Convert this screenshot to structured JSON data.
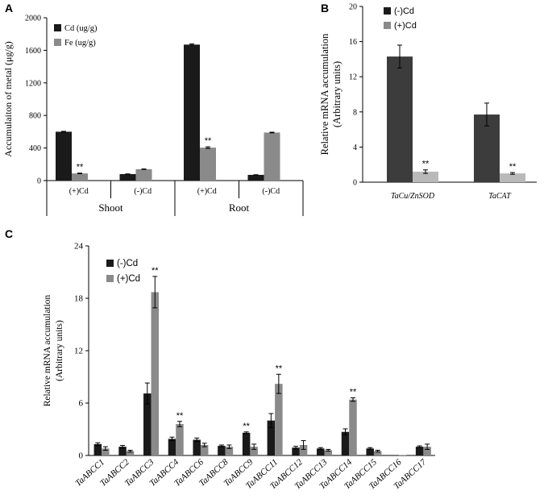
{
  "colors": {
    "black": "#1a1a1a",
    "dark": "#3c3c3c",
    "gray": "#8a8a8a",
    "light": "#b9b9b9",
    "axis": "#000000"
  },
  "chart_data": [
    {
      "panel": "A",
      "type": "bar",
      "ylabel": "Accumulaiton of metal (μg/g)",
      "ylim": [
        0,
        2000
      ],
      "yticks": [
        0,
        400,
        800,
        1200,
        1600,
        2000
      ],
      "categories": [
        "(+)Cd",
        "(-)Cd",
        "(+)Cd",
        "(-)Cd"
      ],
      "groups": [
        "Shoot",
        "Root"
      ],
      "series": [
        {
          "name": "Cd (ug/g)",
          "values": [
            600,
            80,
            1670,
            70
          ],
          "errors": [
            5,
            2,
            8,
            2
          ]
        },
        {
          "name": "Fe (ug/g)",
          "values": [
            88,
            140,
            405,
            590
          ],
          "errors": [
            4,
            3,
            10,
            4
          ]
        }
      ],
      "significance": [
        {
          "series": 1,
          "index": 0,
          "text": "**"
        },
        {
          "series": 1,
          "index": 2,
          "text": "**"
        }
      ]
    },
    {
      "panel": "B",
      "type": "bar",
      "ylabel": "Relative mRNA accumulation",
      "ylabel2": "(Arbitrary units)",
      "ylim": [
        0,
        20
      ],
      "yticks": [
        0,
        4,
        8,
        12,
        16,
        20
      ],
      "categories": [
        "TaCu/ZnSOD",
        "TaCAT"
      ],
      "series": [
        {
          "name": "(-)Cd",
          "values": [
            14.3,
            7.7
          ],
          "errors": [
            1.3,
            1.3
          ]
        },
        {
          "name": "(+)Cd",
          "values": [
            1.2,
            1.0
          ],
          "errors": [
            0.2,
            0.1
          ]
        }
      ],
      "significance": [
        {
          "series": 1,
          "index": 0,
          "text": "**"
        },
        {
          "series": 1,
          "index": 1,
          "text": "**"
        }
      ]
    },
    {
      "panel": "C",
      "type": "bar",
      "ylabel": "Relative mRNA accumulation",
      "ylabel2": "(Arbitrary units)",
      "ylim": [
        0,
        24
      ],
      "yticks": [
        0,
        6,
        12,
        18,
        24
      ],
      "categories": [
        "TaABCC1",
        "TaABCC2",
        "TaABCC3",
        "TaABCC4",
        "TaABCC6",
        "TaABCC8",
        "TaABCC9",
        "TaABCC11",
        "TaABCC12",
        "TaABCC13",
        "TaABCC14",
        "TaABCC15",
        "TaABCC16",
        "TaABCC17"
      ],
      "series": [
        {
          "name": "(-)Cd",
          "values": [
            1.3,
            1.0,
            7.1,
            1.9,
            1.8,
            1.1,
            2.6,
            4.0,
            0.9,
            0.8,
            2.7,
            0.8,
            0.05,
            1.0
          ],
          "errors": [
            0.15,
            0.15,
            1.2,
            0.2,
            0.2,
            0.1,
            0.1,
            0.8,
            0.15,
            0.1,
            0.35,
            0.1,
            0.0,
            0.1
          ]
        },
        {
          "name": "(+)Cd",
          "values": [
            0.8,
            0.5,
            18.7,
            3.6,
            1.2,
            1.0,
            1.0,
            8.2,
            1.2,
            0.6,
            6.4,
            0.5,
            0.05,
            1.0
          ],
          "errors": [
            0.2,
            0.1,
            1.8,
            0.3,
            0.2,
            0.2,
            0.3,
            1.1,
            0.5,
            0.1,
            0.2,
            0.1,
            0.0,
            0.3
          ]
        }
      ],
      "significance": [
        {
          "series": 1,
          "index": 2,
          "text": "**"
        },
        {
          "series": 1,
          "index": 3,
          "text": "**"
        },
        {
          "series": 0,
          "index": 6,
          "text": "**"
        },
        {
          "series": 1,
          "index": 7,
          "text": "**"
        },
        {
          "series": 1,
          "index": 10,
          "text": "**"
        }
      ]
    }
  ],
  "panels": {
    "a": "A",
    "b": "B",
    "c": "C"
  }
}
